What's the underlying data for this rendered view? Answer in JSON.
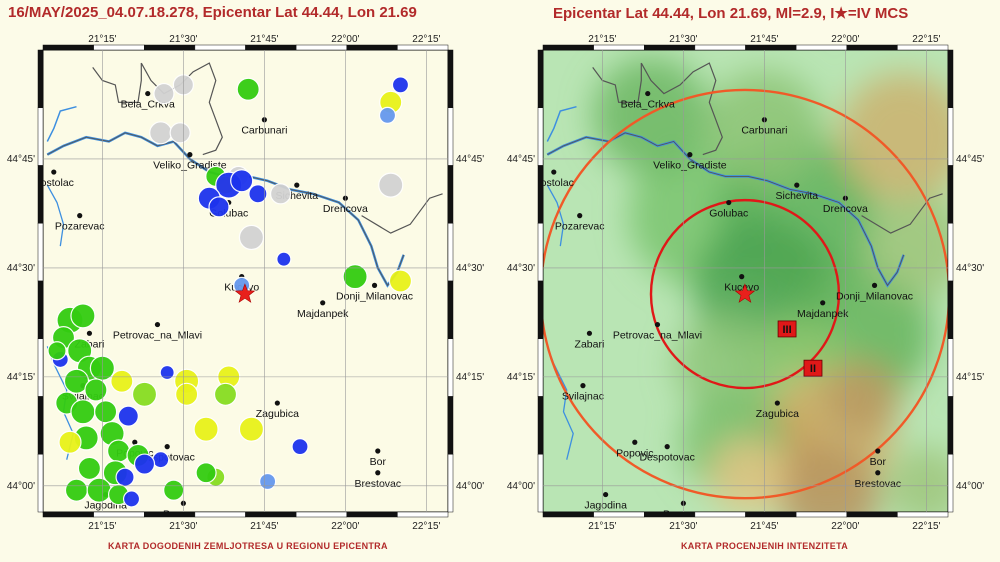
{
  "left_title": "16/MAY/2025_04.07.18.278, Epicentar Lat 44.44, Lon 21.69",
  "right_title": "Epicentar Lat 44.44, Lon 21.69, Ml=2.9, I★=IV MCS",
  "left_caption": "KARTA DOGODENIH ZEMLJOTRESA U REGIONU EPICENTRA",
  "right_caption": "KARTA PROCENJENIH INTENZITETA",
  "lon_ticks": [
    "21°15'",
    "21°30'",
    "21°45'",
    "22°00'",
    "22°15'"
  ],
  "lat_ticks": [
    "44°45'",
    "44°30'",
    "44°15'",
    "44°00'"
  ],
  "cities": [
    {
      "name": "Bela_Crkva",
      "lon": 21.39,
      "lat": 44.9
    },
    {
      "name": "Carbunari",
      "lon": 21.75,
      "lat": 44.84
    },
    {
      "name": "Veliko_Gradiste",
      "lon": 21.52,
      "lat": 44.76
    },
    {
      "name": "Kostolac",
      "lon": 21.1,
      "lat": 44.72
    },
    {
      "name": "Sichevita",
      "lon": 21.85,
      "lat": 44.69
    },
    {
      "name": "Pozarevac",
      "lon": 21.18,
      "lat": 44.62
    },
    {
      "name": "Golubac",
      "lon": 21.64,
      "lat": 44.65
    },
    {
      "name": "Drencova",
      "lon": 22.0,
      "lat": 44.66
    },
    {
      "name": "Kucevo",
      "lon": 21.68,
      "lat": 44.48
    },
    {
      "name": "Donji_Milanovac",
      "lon": 22.09,
      "lat": 44.46
    },
    {
      "name": "Majdanpek",
      "lon": 21.93,
      "lat": 44.42
    },
    {
      "name": "Petrovac_na_Mlavi",
      "lon": 21.42,
      "lat": 44.37
    },
    {
      "name": "Zabari",
      "lon": 21.21,
      "lat": 44.35
    },
    {
      "name": "Svilajnac",
      "lon": 21.19,
      "lat": 44.23
    },
    {
      "name": "Zagubica",
      "lon": 21.79,
      "lat": 44.19
    },
    {
      "name": "Bor",
      "lon": 22.1,
      "lat": 44.08
    },
    {
      "name": "Popovic",
      "lon": 21.35,
      "lat": 44.1
    },
    {
      "name": "Despotovac",
      "lon": 21.45,
      "lat": 44.09
    },
    {
      "name": "Brestovac",
      "lon": 22.1,
      "lat": 44.03
    },
    {
      "name": "Jagodina",
      "lon": 21.26,
      "lat": 43.98
    },
    {
      "name": "Popovac",
      "lon": 21.5,
      "lat": 43.96
    }
  ],
  "epicenter": {
    "lat": 44.44,
    "lon": 21.69,
    "color": "#e8201c"
  },
  "event_colors": {
    "green": "#33cc11",
    "light_green": "#88dd22",
    "yellow": "#e8f21a",
    "blue": "#1d33ee",
    "light_blue": "#6699ee",
    "gray": "#d2d2d2"
  },
  "events": [
    {
      "lon": 21.7,
      "lat": 44.91,
      "r": 11,
      "c": "green"
    },
    {
      "lon": 22.17,
      "lat": 44.92,
      "r": 8,
      "c": "blue"
    },
    {
      "lon": 22.14,
      "lat": 44.88,
      "r": 11,
      "c": "yellow"
    },
    {
      "lon": 22.13,
      "lat": 44.85,
      "r": 8,
      "c": "light_blue"
    },
    {
      "lon": 21.5,
      "lat": 44.92,
      "r": 10,
      "c": "gray"
    },
    {
      "lon": 21.44,
      "lat": 44.9,
      "r": 10,
      "c": "gray"
    },
    {
      "lon": 21.43,
      "lat": 44.81,
      "r": 11,
      "c": "gray"
    },
    {
      "lon": 21.49,
      "lat": 44.81,
      "r": 10,
      "c": "gray"
    },
    {
      "lon": 22.14,
      "lat": 44.69,
      "r": 12,
      "c": "gray"
    },
    {
      "lon": 21.67,
      "lat": 44.71,
      "r": 10,
      "c": "gray"
    },
    {
      "lon": 21.8,
      "lat": 44.67,
      "r": 10,
      "c": "gray"
    },
    {
      "lon": 21.71,
      "lat": 44.57,
      "r": 12,
      "c": "gray"
    },
    {
      "lon": 21.6,
      "lat": 44.71,
      "r": 10,
      "c": "green"
    },
    {
      "lon": 21.63,
      "lat": 44.69,
      "r": 9,
      "c": "yellow"
    },
    {
      "lon": 21.64,
      "lat": 44.69,
      "r": 13,
      "c": "blue"
    },
    {
      "lon": 21.68,
      "lat": 44.7,
      "r": 11,
      "c": "blue"
    },
    {
      "lon": 21.58,
      "lat": 44.66,
      "r": 11,
      "c": "blue"
    },
    {
      "lon": 21.61,
      "lat": 44.64,
      "r": 10,
      "c": "blue"
    },
    {
      "lon": 21.73,
      "lat": 44.67,
      "r": 9,
      "c": "blue"
    },
    {
      "lon": 21.68,
      "lat": 44.46,
      "r": 8,
      "c": "light_blue"
    },
    {
      "lon": 21.81,
      "lat": 44.52,
      "r": 7,
      "c": "blue"
    },
    {
      "lon": 22.03,
      "lat": 44.48,
      "r": 12,
      "c": "green"
    },
    {
      "lon": 22.17,
      "lat": 44.47,
      "r": 11,
      "c": "yellow"
    },
    {
      "lon": 21.64,
      "lat": 44.25,
      "r": 11,
      "c": "yellow"
    },
    {
      "lon": 21.63,
      "lat": 44.21,
      "r": 11,
      "c": "light_green"
    },
    {
      "lon": 21.51,
      "lat": 44.24,
      "r": 12,
      "c": "yellow"
    },
    {
      "lon": 21.51,
      "lat": 44.21,
      "r": 11,
      "c": "yellow"
    },
    {
      "lon": 21.45,
      "lat": 44.26,
      "r": 7,
      "c": "blue"
    },
    {
      "lon": 21.57,
      "lat": 44.13,
      "r": 12,
      "c": "yellow"
    },
    {
      "lon": 21.71,
      "lat": 44.13,
      "r": 12,
      "c": "yellow"
    },
    {
      "lon": 21.86,
      "lat": 44.09,
      "r": 8,
      "c": "blue"
    },
    {
      "lon": 21.6,
      "lat": 44.02,
      "r": 9,
      "c": "light_green"
    },
    {
      "lon": 21.57,
      "lat": 44.03,
      "r": 10,
      "c": "green"
    },
    {
      "lon": 21.76,
      "lat": 44.01,
      "r": 8,
      "c": "light_blue"
    },
    {
      "lon": 21.31,
      "lat": 44.24,
      "r": 11,
      "c": "yellow"
    },
    {
      "lon": 21.38,
      "lat": 44.21,
      "r": 12,
      "c": "light_green"
    },
    {
      "lon": 21.33,
      "lat": 44.16,
      "r": 10,
      "c": "blue"
    },
    {
      "lon": 21.47,
      "lat": 43.99,
      "r": 10,
      "c": "green"
    },
    {
      "lon": 21.15,
      "lat": 44.38,
      "r": 13,
      "c": "green"
    },
    {
      "lon": 21.19,
      "lat": 44.39,
      "r": 12,
      "c": "green"
    },
    {
      "lon": 21.13,
      "lat": 44.34,
      "r": 11,
      "c": "green"
    },
    {
      "lon": 21.18,
      "lat": 44.31,
      "r": 12,
      "c": "green"
    },
    {
      "lon": 21.12,
      "lat": 44.29,
      "r": 8,
      "c": "blue"
    },
    {
      "lon": 21.21,
      "lat": 44.27,
      "r": 12,
      "c": "green"
    },
    {
      "lon": 21.25,
      "lat": 44.27,
      "r": 12,
      "c": "green"
    },
    {
      "lon": 21.17,
      "lat": 44.24,
      "r": 12,
      "c": "green"
    },
    {
      "lon": 21.23,
      "lat": 44.22,
      "r": 11,
      "c": "green"
    },
    {
      "lon": 21.14,
      "lat": 44.19,
      "r": 11,
      "c": "green"
    },
    {
      "lon": 21.19,
      "lat": 44.17,
      "r": 12,
      "c": "green"
    },
    {
      "lon": 21.26,
      "lat": 44.17,
      "r": 11,
      "c": "green"
    },
    {
      "lon": 21.28,
      "lat": 44.12,
      "r": 12,
      "c": "green"
    },
    {
      "lon": 21.2,
      "lat": 44.11,
      "r": 12,
      "c": "green"
    },
    {
      "lon": 21.15,
      "lat": 44.1,
      "r": 11,
      "c": "yellow"
    },
    {
      "lon": 21.3,
      "lat": 44.08,
      "r": 11,
      "c": "green"
    },
    {
      "lon": 21.36,
      "lat": 44.07,
      "r": 11,
      "c": "green"
    },
    {
      "lon": 21.43,
      "lat": 44.06,
      "r": 8,
      "c": "blue"
    },
    {
      "lon": 21.38,
      "lat": 44.05,
      "r": 10,
      "c": "blue"
    },
    {
      "lon": 21.21,
      "lat": 44.04,
      "r": 11,
      "c": "green"
    },
    {
      "lon": 21.29,
      "lat": 44.03,
      "r": 12,
      "c": "green"
    },
    {
      "lon": 21.32,
      "lat": 44.02,
      "r": 9,
      "c": "blue"
    },
    {
      "lon": 21.17,
      "lat": 43.99,
      "r": 11,
      "c": "green"
    },
    {
      "lon": 21.24,
      "lat": 43.99,
      "r": 12,
      "c": "green"
    },
    {
      "lon": 21.3,
      "lat": 43.98,
      "r": 10,
      "c": "green"
    },
    {
      "lon": 21.34,
      "lat": 43.97,
      "r": 8,
      "c": "blue"
    },
    {
      "lon": 21.11,
      "lat": 44.31,
      "r": 9,
      "c": "green"
    }
  ],
  "intensity_zones": [
    {
      "label": "III",
      "r_deg": 0.29,
      "color": "#e01818",
      "label_lon": 21.82,
      "label_lat": 44.36
    },
    {
      "label": "II",
      "r_deg": 0.63,
      "color": "#f05a28",
      "label_lon": 21.9,
      "label_lat": 44.27
    }
  ]
}
